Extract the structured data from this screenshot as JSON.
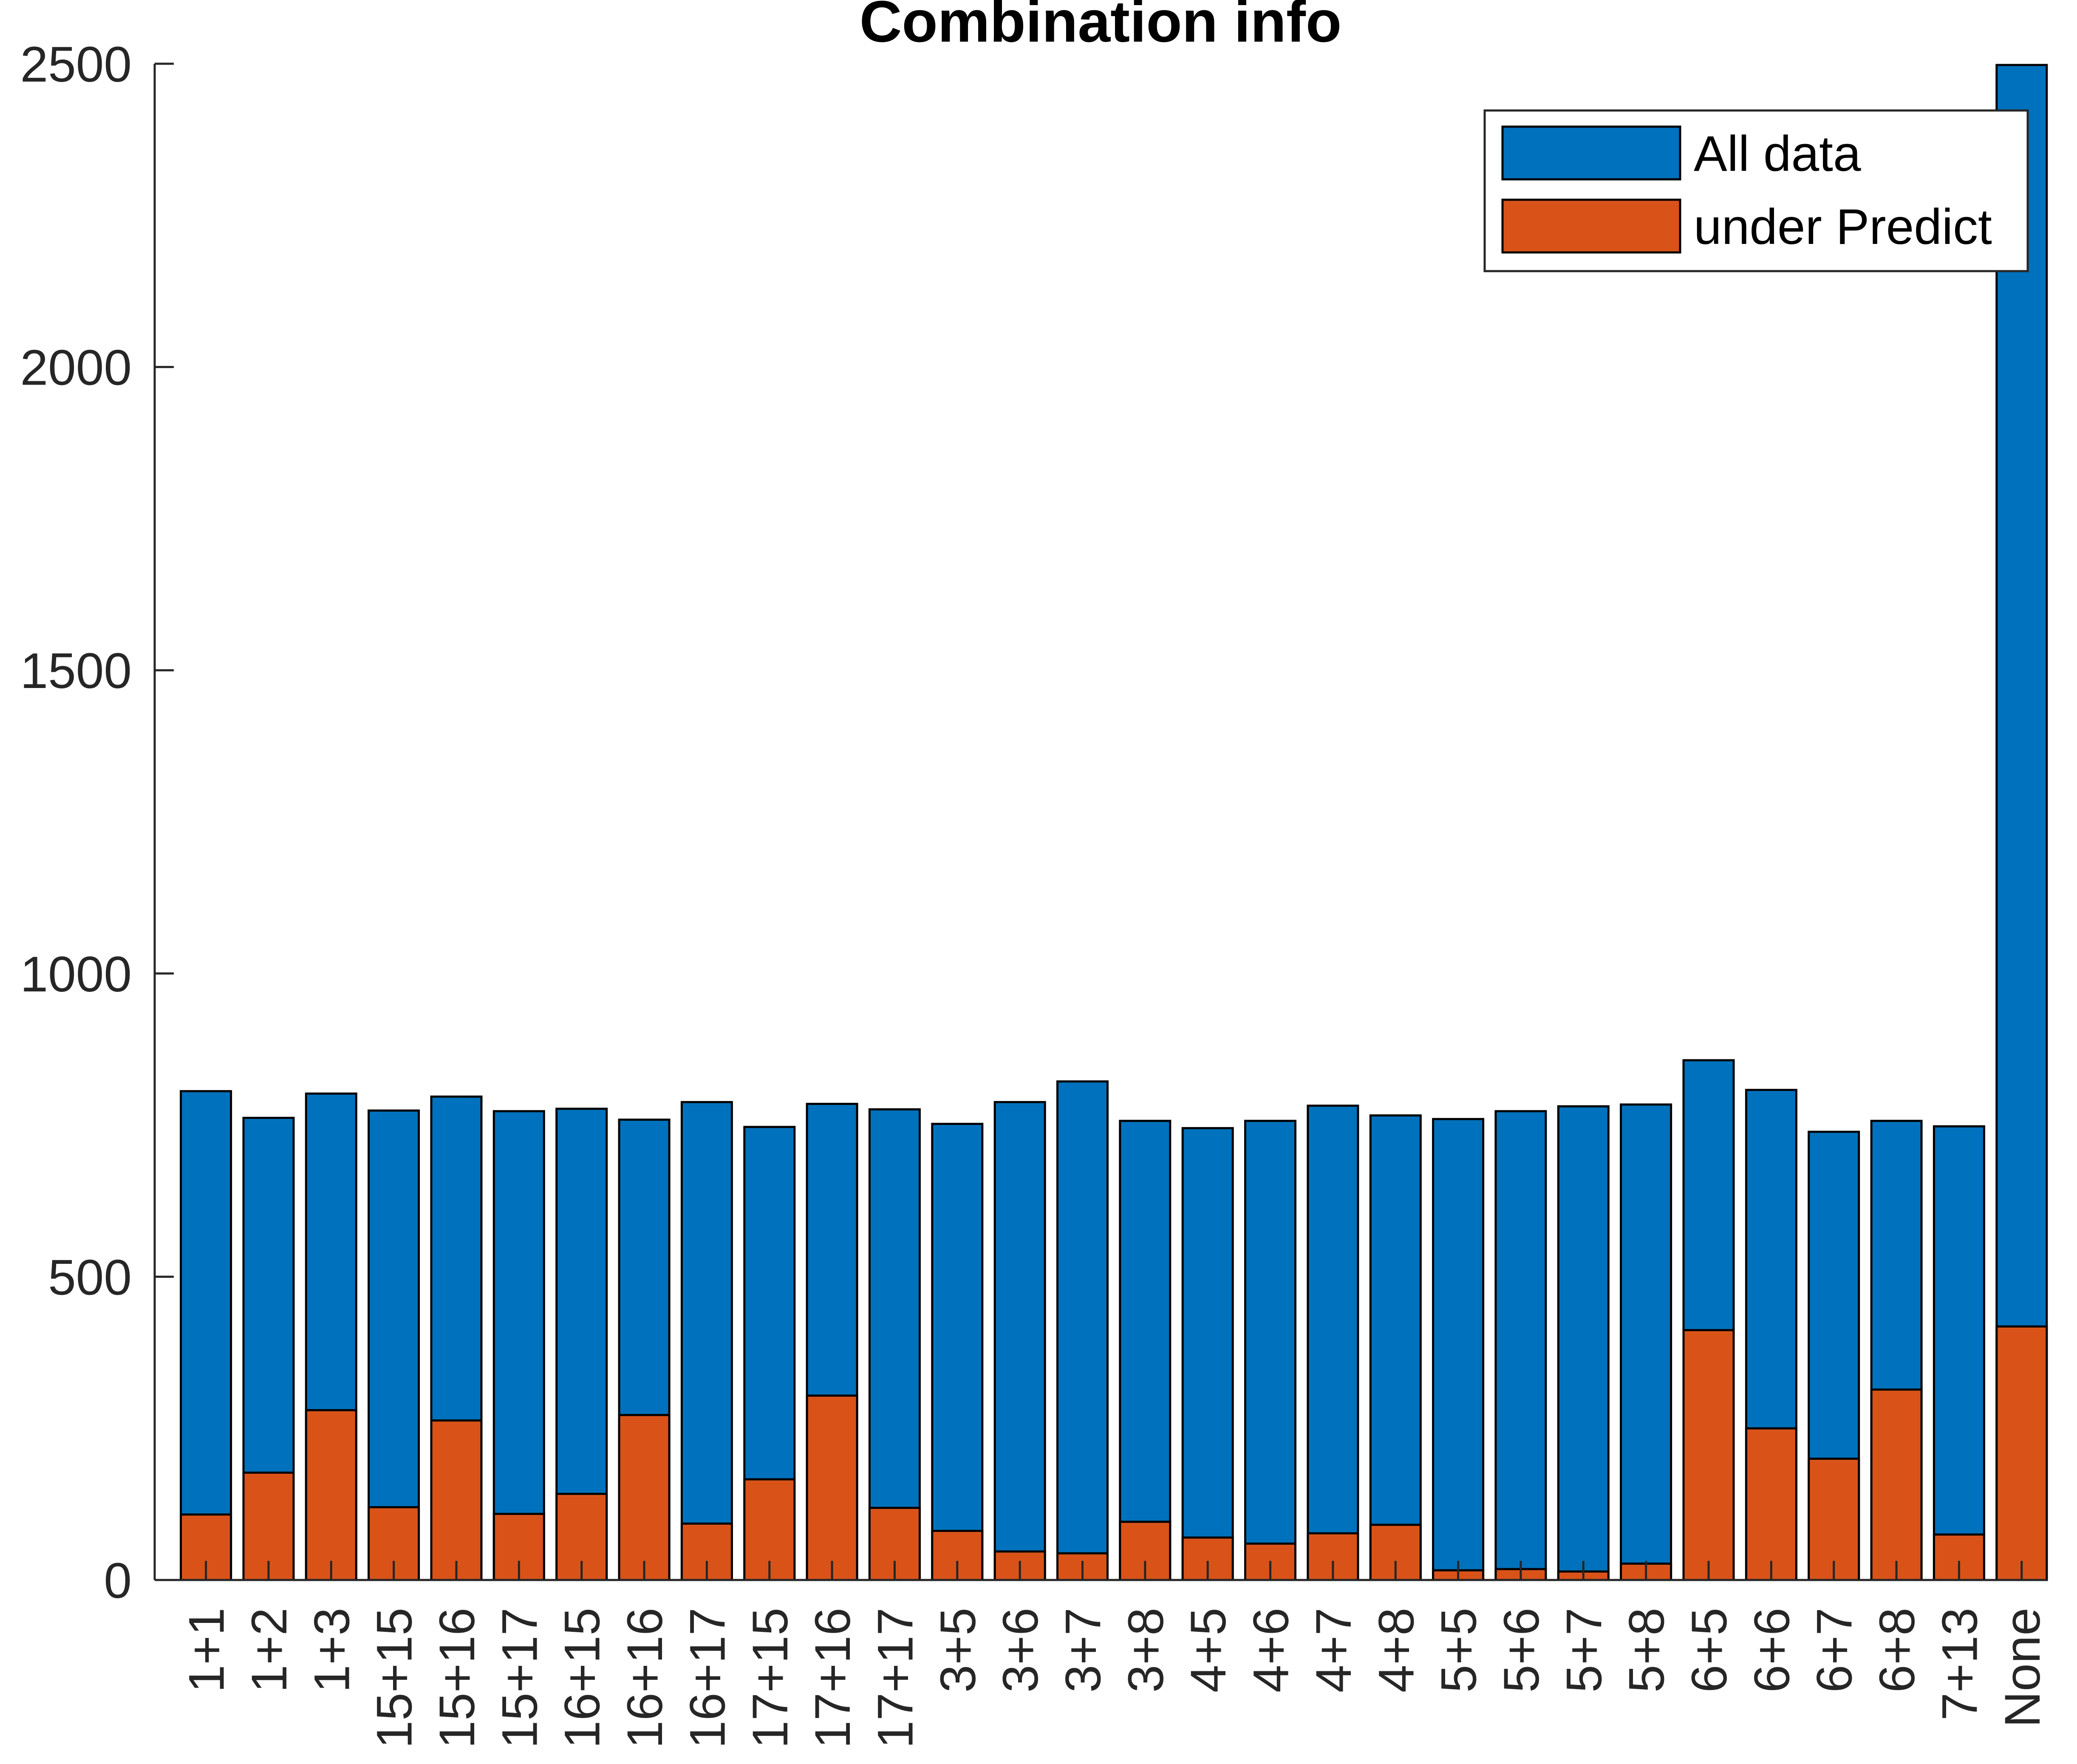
{
  "chart_data": {
    "type": "bar",
    "title": "Combination info",
    "xlabel": "",
    "ylabel": "",
    "ylim": [
      0,
      2500
    ],
    "yticks": [
      "0",
      "500",
      "1000",
      "1500",
      "2000",
      "2500"
    ],
    "grid": false,
    "legend_position": "top-right",
    "overlay": true,
    "categories": [
      "1+1",
      "1+2",
      "1+3",
      "15+15",
      "15+16",
      "15+17",
      "16+15",
      "16+16",
      "16+17",
      "17+15",
      "17+16",
      "17+17",
      "3+5",
      "3+6",
      "3+7",
      "3+8",
      "4+5",
      "4+6",
      "4+7",
      "4+8",
      "5+5",
      "5+6",
      "5+7",
      "5+8",
      "6+5",
      "6+6",
      "6+7",
      "6+8",
      "7+13",
      "None"
    ],
    "series": [
      {
        "name": "All data",
        "color": "#0072BD",
        "values": [
          806,
          762,
          802,
          774,
          797,
          773,
          777,
          759,
          788,
          747,
          785,
          776,
          752,
          788,
          822,
          757,
          745,
          757,
          782,
          766,
          760,
          773,
          781,
          784,
          857,
          808,
          739,
          757,
          748,
          2498
        ]
      },
      {
        "name": "under Predict",
        "color": "#D95319",
        "values": [
          108,
          177,
          280,
          120,
          263,
          109,
          142,
          272,
          93,
          166,
          304,
          119,
          81,
          47,
          44,
          96,
          70,
          60,
          77,
          91,
          16,
          18,
          14,
          27,
          412,
          250,
          200,
          314,
          75,
          418
        ]
      }
    ]
  }
}
